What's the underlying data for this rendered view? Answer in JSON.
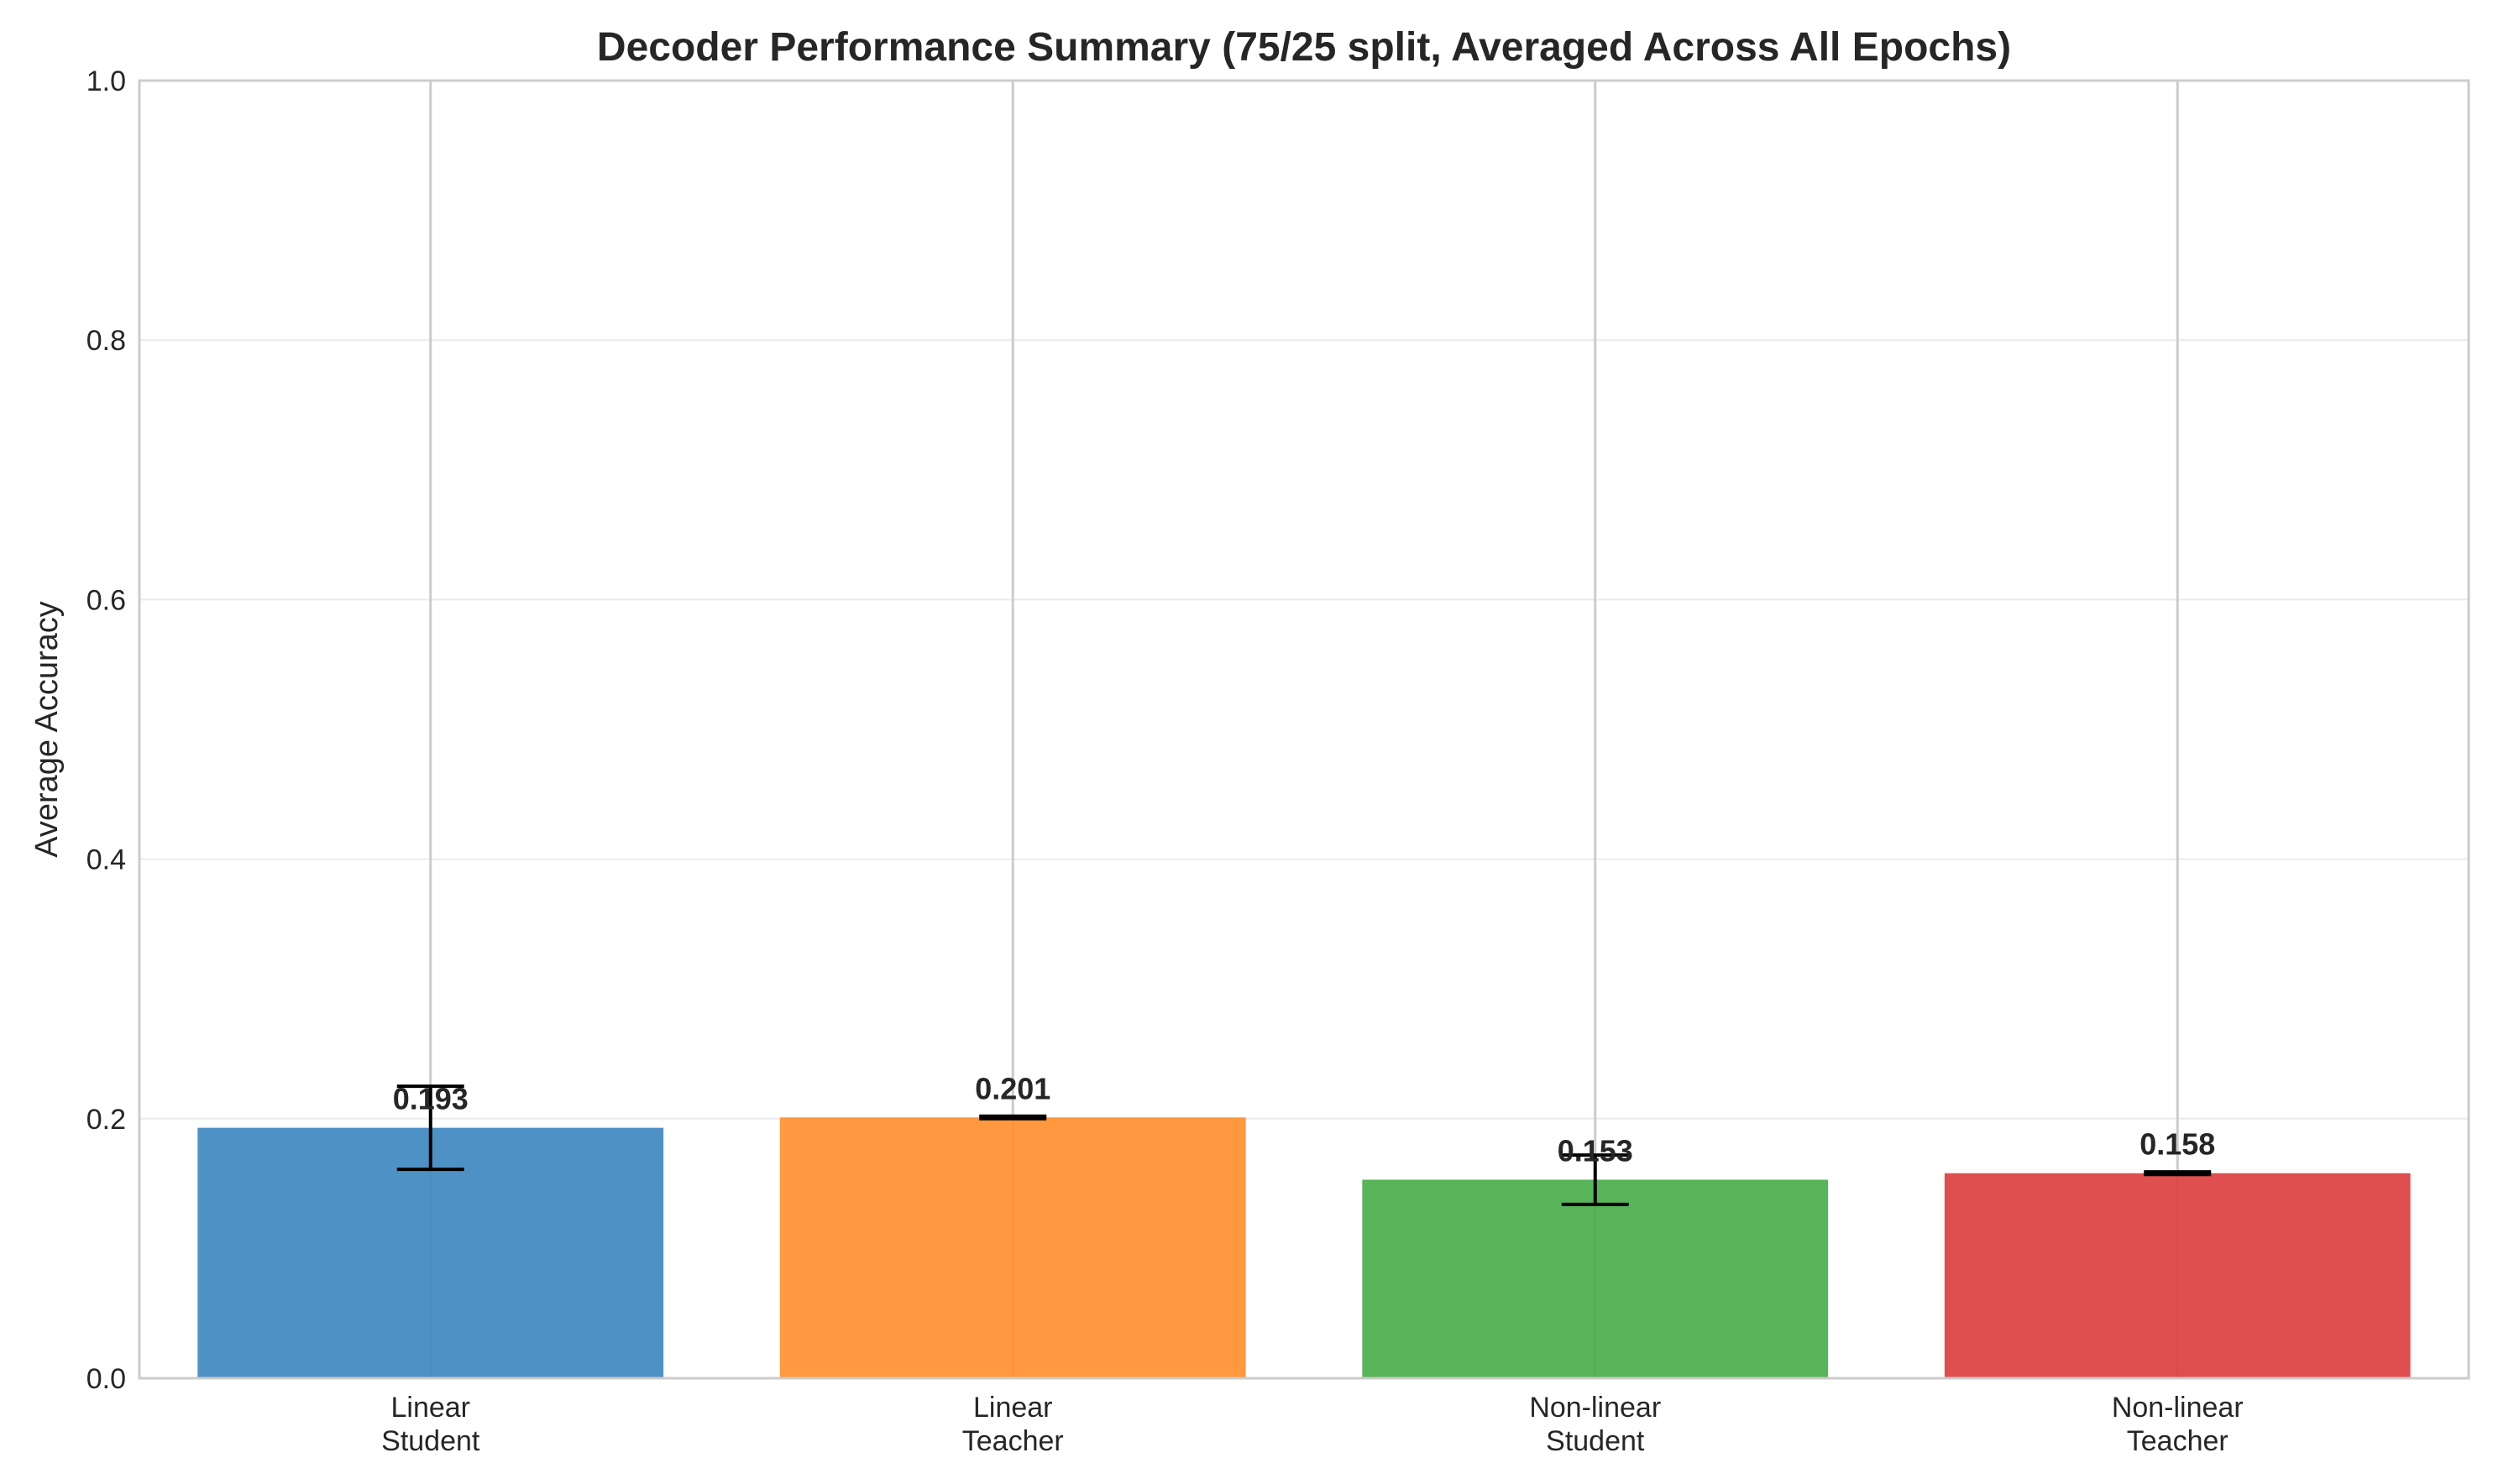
{
  "chart_data": {
    "type": "bar",
    "title": "Decoder Performance Summary (75/25 split, Averaged Across All Epochs)",
    "xlabel": "",
    "ylabel": "Average Accuracy",
    "ylim": [
      0,
      1
    ],
    "yticks": [
      "0.0",
      "0.2",
      "0.4",
      "0.6",
      "0.8",
      "1.0"
    ],
    "categories": [
      [
        "Linear",
        "Student"
      ],
      [
        "Linear",
        "Teacher"
      ],
      [
        "Non-linear",
        "Student"
      ],
      [
        "Non-linear",
        "Teacher"
      ]
    ],
    "values": [
      0.193,
      0.201,
      0.153,
      0.158
    ],
    "value_labels": [
      "0.193",
      "0.201",
      "0.153",
      "0.158"
    ],
    "errors": [
      0.032,
      0.001,
      0.019,
      0.001
    ],
    "colors": [
      "#3f88c0",
      "#ff8f2e",
      "#4aae4a",
      "#dc4041"
    ],
    "grid": true,
    "legend": "none"
  }
}
